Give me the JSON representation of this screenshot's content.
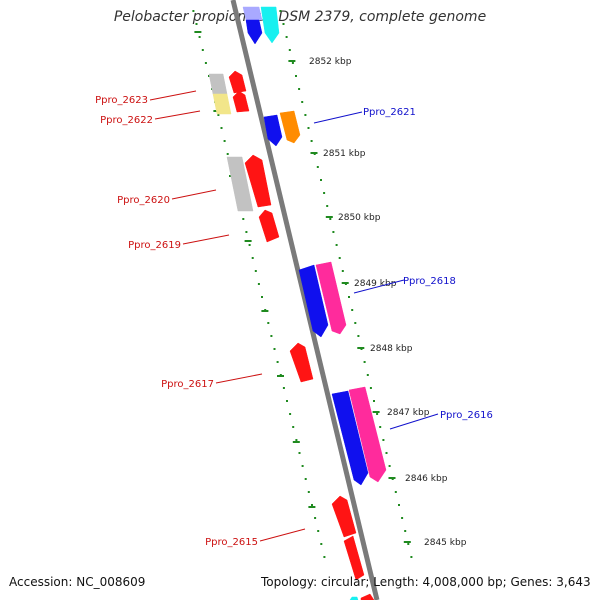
{
  "title": "Pelobacter propionicus DSM 2379, complete genome",
  "accession_text": "Accession: NC_008609",
  "summary_text": "Topology: circular; Length: 4,008,000 bp; Genes: 3,643",
  "colors": {
    "backbone": "#7a7a7a",
    "tick": "#1f8a1f",
    "label_minus": "#cc1111",
    "label_plus": "#1111cc",
    "red": "#ff1414",
    "blue": "#1010ee",
    "pink": "#ff2b9c",
    "orange": "#ff8c00",
    "gray": "#c2c2c2",
    "yellow": "#f2e68a",
    "cyan": "#18f0f0",
    "lavender": "#a9a9ff"
  },
  "kbp_labels": [
    "2852 kbp",
    "2851 kbp",
    "2850 kbp",
    "2849 kbp",
    "2848 kbp",
    "2847 kbp",
    "2846 kbp",
    "2845 kbp"
  ],
  "gene_labels_minus": [
    "Ppro_2623",
    "Ppro_2622",
    "Ppro_2620",
    "Ppro_2619",
    "Ppro_2617",
    "Ppro_2615"
  ],
  "gene_labels_plus": [
    "Ppro_2621",
    "Ppro_2618",
    "Ppro_2616"
  ]
}
